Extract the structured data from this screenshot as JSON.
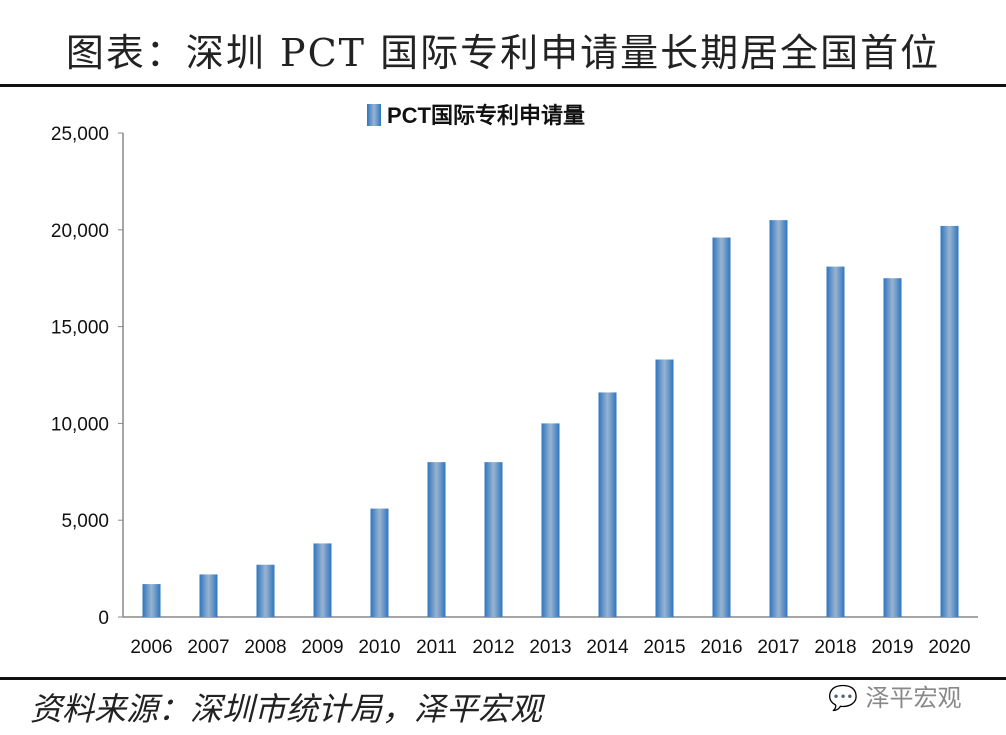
{
  "header": {
    "title": "图表：深圳 PCT 国际专利申请量长期居全国首位"
  },
  "footer": {
    "source": "资料来源：深圳市统计局，泽平宏观",
    "logo_text": "泽平宏观"
  },
  "chart_data": {
    "type": "bar",
    "title": "",
    "categories": [
      "2006",
      "2007",
      "2008",
      "2009",
      "2010",
      "2011",
      "2012",
      "2013",
      "2014",
      "2015",
      "2016",
      "2017",
      "2018",
      "2019",
      "2020"
    ],
    "series": [
      {
        "name": "PCT国际专利申请量",
        "values": [
          1700,
          2200,
          2700,
          3800,
          5600,
          8000,
          8000,
          10000,
          11600,
          13300,
          19600,
          20500,
          18100,
          17500,
          20200
        ]
      }
    ],
    "yticks": [
      "0",
      "5,000",
      "10,000",
      "15,000",
      "20,000",
      "25,000"
    ],
    "ylim": [
      0,
      25000
    ],
    "grid": false,
    "legend": "top-center",
    "colors": {
      "bar": "#2e75c0",
      "bar_highlight": "#9ab4cf"
    }
  }
}
